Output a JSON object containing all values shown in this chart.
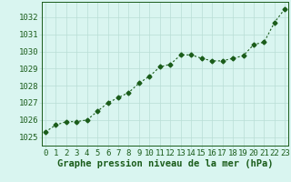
{
  "x": [
    0,
    1,
    2,
    3,
    4,
    5,
    6,
    7,
    8,
    9,
    10,
    11,
    12,
    13,
    14,
    15,
    16,
    17,
    18,
    19,
    20,
    21,
    22,
    23
  ],
  "y": [
    1025.3,
    1025.7,
    1025.9,
    1025.9,
    1026.0,
    1026.5,
    1027.0,
    1027.3,
    1027.6,
    1028.15,
    1028.55,
    1029.1,
    1029.25,
    1029.8,
    1029.8,
    1029.6,
    1029.45,
    1029.45,
    1029.6,
    1029.75,
    1030.4,
    1030.55,
    1031.7,
    1032.5
  ],
  "line_color": "#1a5c1a",
  "marker": "D",
  "marker_size": 2.5,
  "linewidth": 0.8,
  "bg_color": "#d9f5f0",
  "grid_color": "#b8ddd5",
  "xlabel": "Graphe pression niveau de la mer (hPa)",
  "xlabel_fontsize": 7.5,
  "xlabel_color": "#1a5c1a",
  "ytick_labels": [
    "1025",
    "1026",
    "1027",
    "1028",
    "1029",
    "1030",
    "1031",
    "1032"
  ],
  "ytick_values": [
    1025,
    1026,
    1027,
    1028,
    1029,
    1030,
    1031,
    1032
  ],
  "ylim": [
    1024.5,
    1032.9
  ],
  "xlim": [
    -0.3,
    23.3
  ],
  "xtick_labels": [
    "0",
    "1",
    "2",
    "3",
    "4",
    "5",
    "6",
    "7",
    "8",
    "9",
    "10",
    "11",
    "12",
    "13",
    "14",
    "15",
    "16",
    "17",
    "18",
    "19",
    "20",
    "21",
    "22",
    "23"
  ],
  "tick_fontsize": 6.5,
  "tick_color": "#1a5c1a"
}
